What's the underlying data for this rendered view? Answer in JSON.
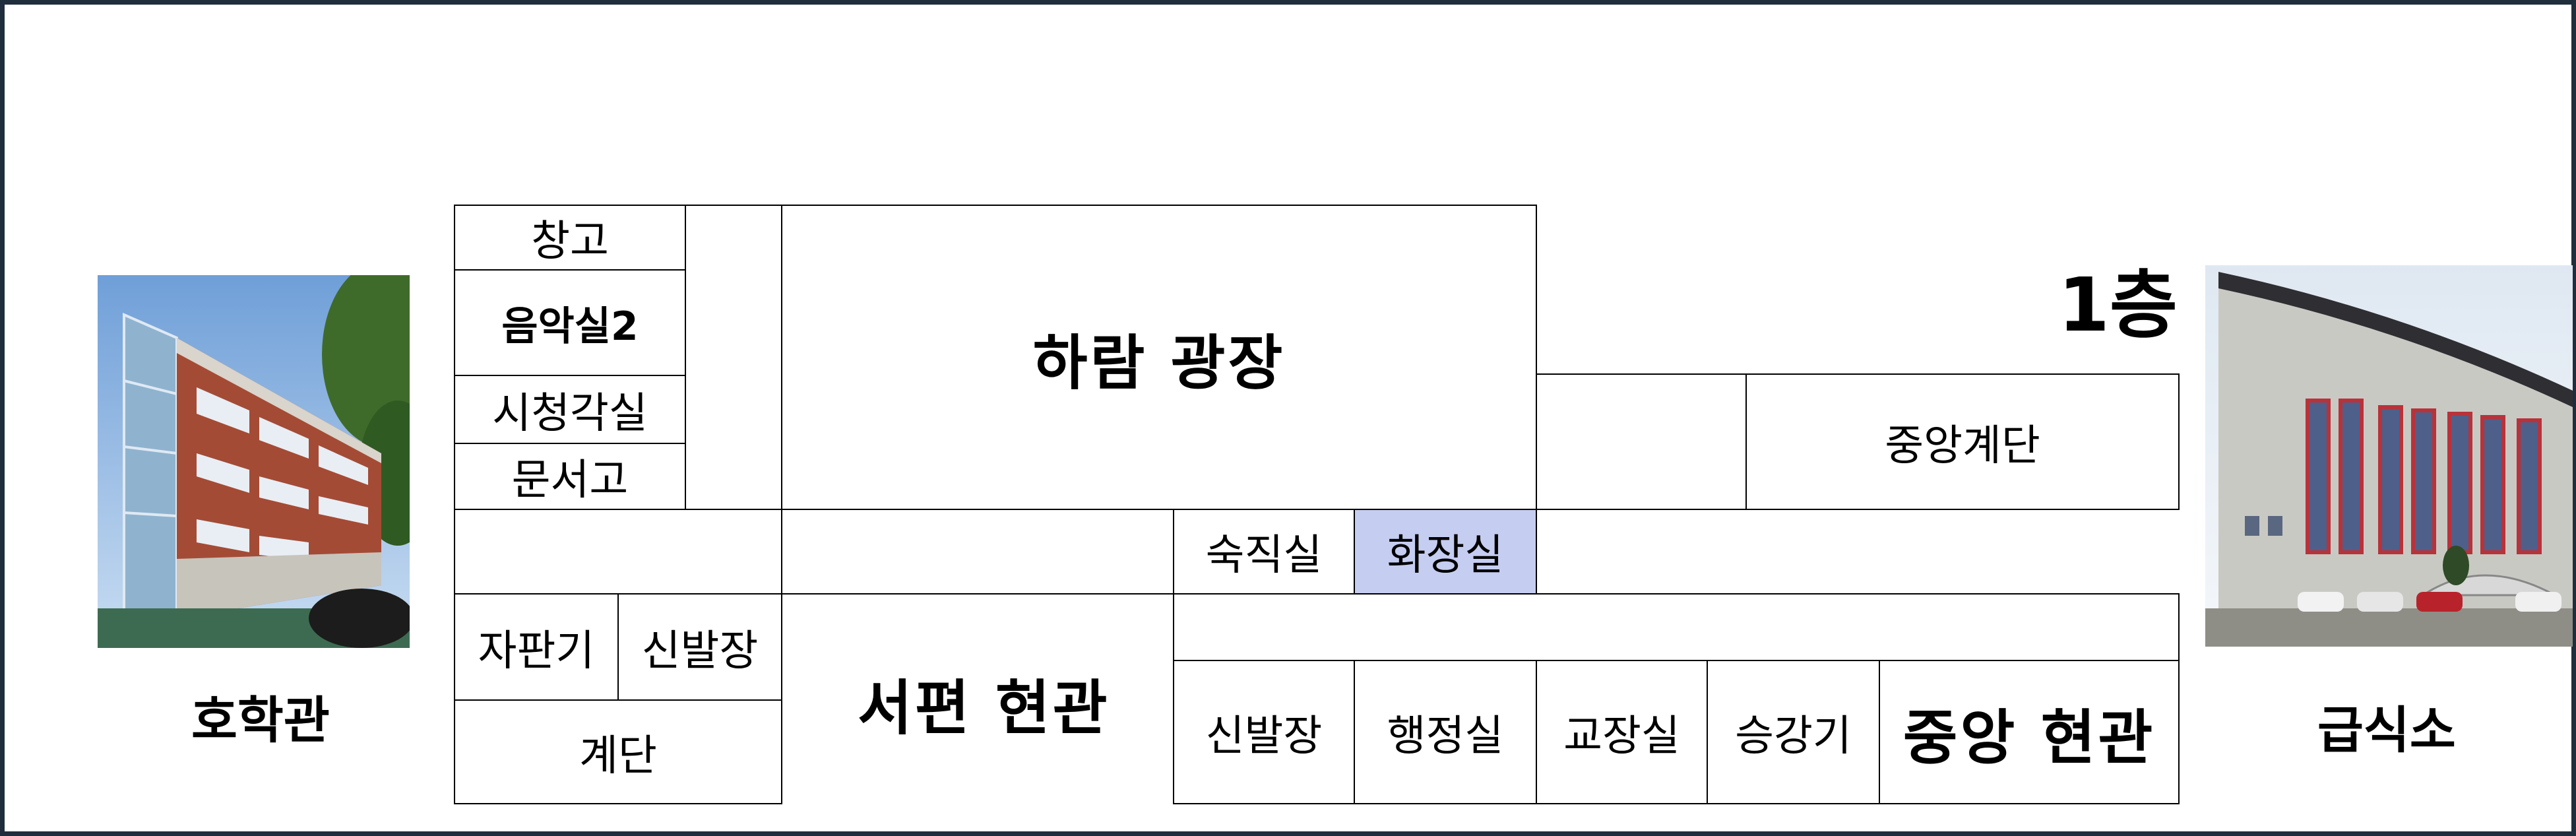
{
  "floor_label": "1층",
  "buildings": {
    "left": "호학관",
    "right": "급식소"
  },
  "rooms": {
    "storage": "창고",
    "music_room_2": "음악실2",
    "av_room": "시청각실",
    "document_storage": "문서고",
    "vending_machine": "자판기",
    "shoe_rack_west": "신발장",
    "stairs_west": "계단",
    "plaza": "하람 광장",
    "west_entrance": "서편 현관",
    "night_duty_room": "숙직실",
    "restroom": "화장실",
    "central_stairs": "중앙계단",
    "shoe_rack_central": "신발장",
    "admin_office": "행정실",
    "principal_office": "교장실",
    "elevator": "승강기",
    "central_entrance": "중앙 현관"
  },
  "colors": {
    "frame": "#1f2d3d",
    "restroom_highlight": "#c5cdf0",
    "wall": "#000000"
  }
}
